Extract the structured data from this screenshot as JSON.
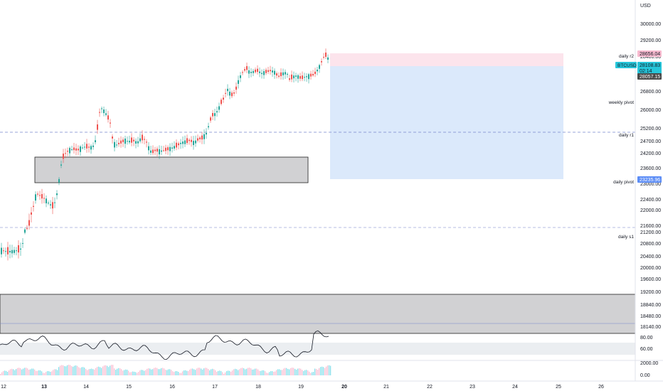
{
  "chart": {
    "currency": "USD",
    "symbol_badge": "BTCUSD",
    "countdown": "02:14",
    "price_labels": {
      "target": "28656.04",
      "last": "28108.83",
      "cursor": "28057.15",
      "stop": "23235.96"
    },
    "levels": [
      {
        "label": "daily r2",
        "price": 28700
      },
      {
        "label": "weekly pivot",
        "price": 26560
      },
      {
        "label": "daily r1",
        "price": 25190
      },
      {
        "label": "daily pivot",
        "price": 23000
      },
      {
        "label": "daily s1",
        "price": 21210
      }
    ],
    "y_ticks": [
      "30000.00",
      "29200.00",
      "28400.00",
      "27600.00",
      "26800.00",
      "26000.00",
      "25200.00",
      "24700.00",
      "24200.00",
      "23600.00",
      "23000.00",
      "22400.00",
      "22000.00",
      "21600.00",
      "21200.00",
      "20800.00",
      "20400.00",
      "20000.00",
      "19600.00",
      "19200.00",
      "18840.00",
      "18480.00",
      "18140.00"
    ],
    "x_ticks": [
      "12",
      "13",
      "14",
      "15",
      "16",
      "17",
      "18",
      "19",
      "20",
      "21",
      "22",
      "23",
      "24",
      "25",
      "26"
    ],
    "rsi_ticks": [
      "80.00",
      "60.00"
    ],
    "volume_ticks": [
      "2000.00",
      "0.00"
    ],
    "colors": {
      "up": "#26a69a",
      "down": "#ef5350",
      "target_zone": "#fce4ec",
      "stop_zone": "#dbe9fb",
      "badge": "#26c6da",
      "stop_badge": "#2962ff"
    }
  },
  "chart_data": {
    "type": "candlestick",
    "symbol": "BTCUSD",
    "currency": "USD",
    "x": [
      "12",
      "13",
      "14",
      "15",
      "16",
      "17",
      "18",
      "19"
    ],
    "close_approx": [
      20600,
      24300,
      26000,
      24800,
      25000,
      26900,
      27800,
      28108
    ],
    "ylim": [
      18000,
      30300
    ],
    "position": {
      "target": 28656.04,
      "entry": 28108.83,
      "stop": 23235.96
    }
  }
}
